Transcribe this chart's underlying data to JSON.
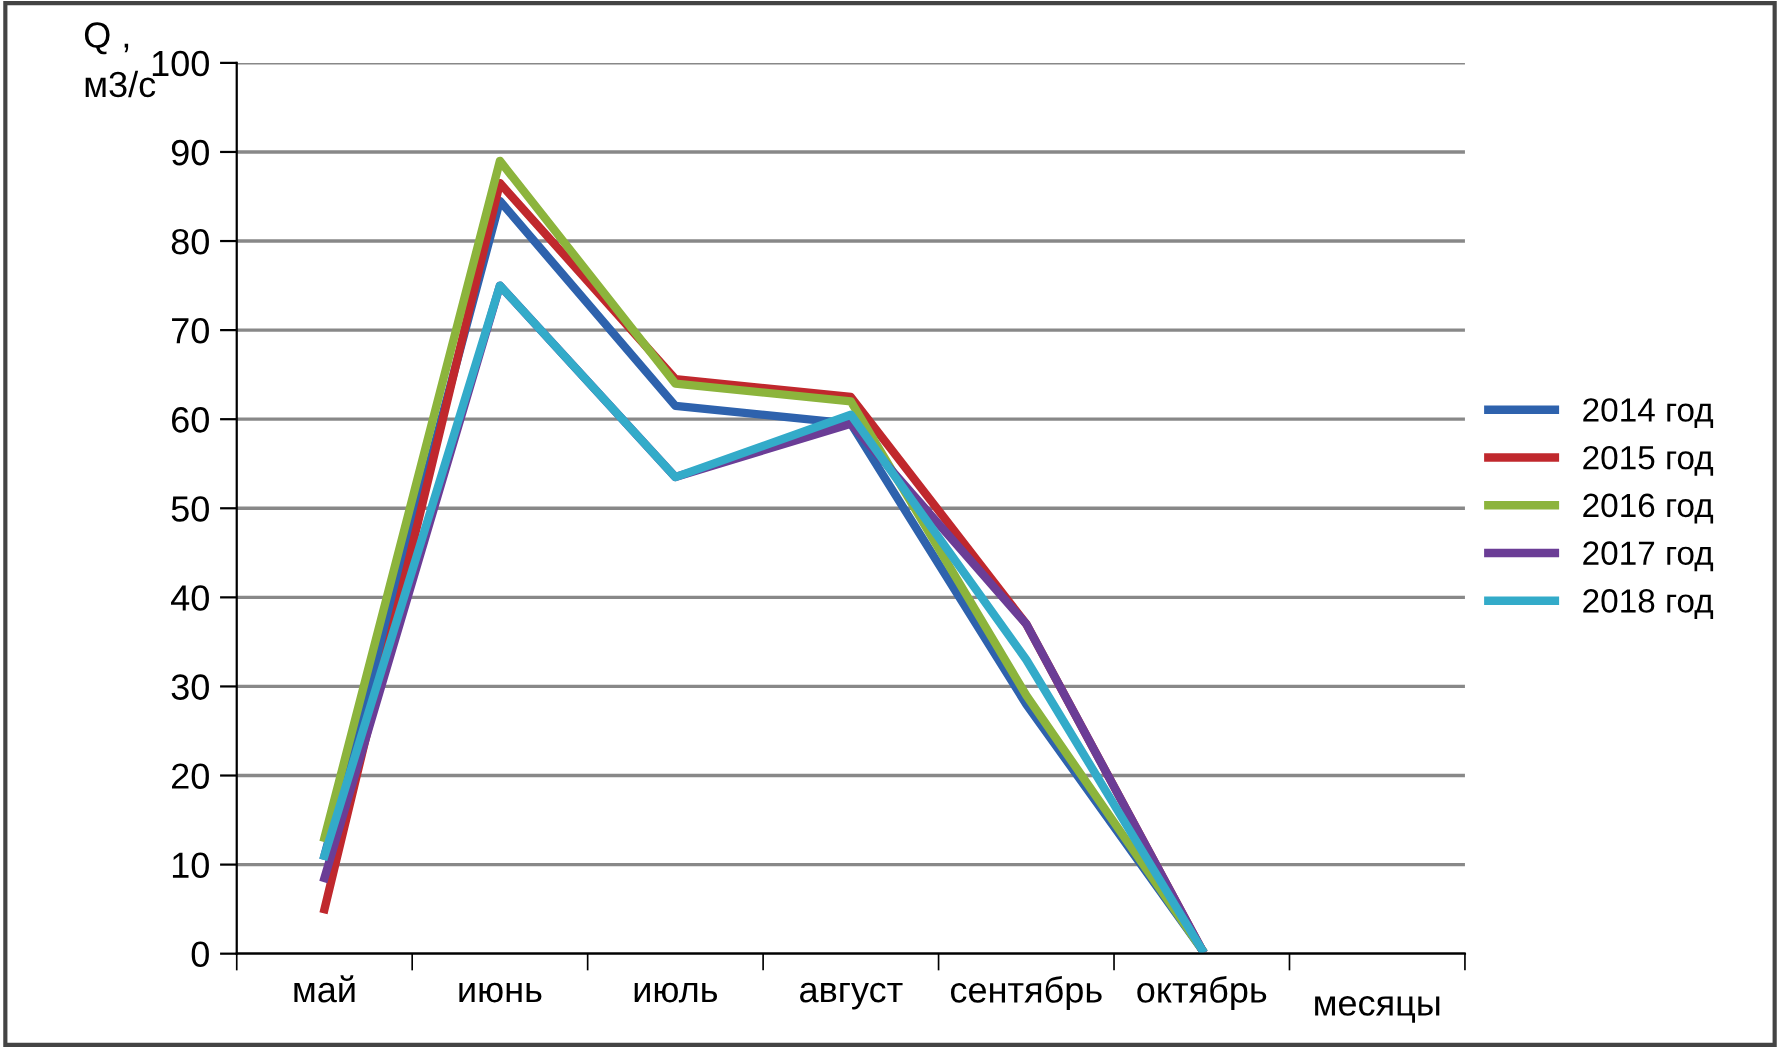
{
  "chart_data": {
    "type": "line",
    "ylabel": "Q ,\nм3/с",
    "xlabel": "месяцы",
    "categories": [
      "май",
      "июнь",
      "июль",
      "август",
      "сентябрь",
      "октябрь"
    ],
    "series": [
      {
        "name": "2014 год",
        "color": "#2e62ad",
        "values": [
          11,
          84.5,
          61.5,
          59.5,
          28,
          0.5
        ]
      },
      {
        "name": "2015 год",
        "color": "#c0282d",
        "values": [
          5,
          86.5,
          64.5,
          62.5,
          37,
          0.5
        ]
      },
      {
        "name": "2016 год",
        "color": "#8cb43c",
        "values": [
          13,
          89,
          64,
          62,
          29,
          0.5
        ]
      },
      {
        "name": "2017 год",
        "color": "#6b3d96",
        "values": [
          8.5,
          75,
          53.5,
          59.5,
          37,
          0.5
        ]
      },
      {
        "name": "2018 год",
        "color": "#33abc9",
        "values": [
          11,
          75,
          53.5,
          60.5,
          33,
          0.5
        ]
      }
    ],
    "ylim": [
      0,
      100
    ],
    "yticks": [
      0,
      10,
      20,
      30,
      40,
      50,
      60,
      70,
      80,
      90,
      100
    ],
    "grid": "y",
    "legend": "right",
    "marker": "none",
    "line_style": "solid"
  }
}
